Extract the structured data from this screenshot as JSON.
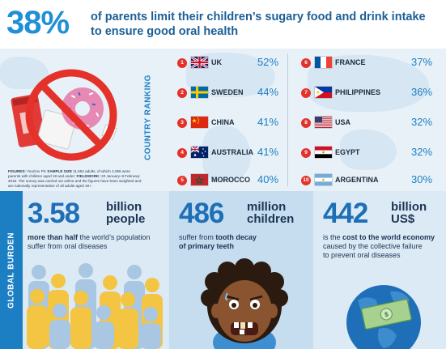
{
  "header": {
    "big_percent": "38%",
    "headline_line1": "of parents limit their children’s sugary food and drink intake",
    "headline_line2": "to ensure good oral health"
  },
  "ranking": {
    "label": "COUNTRY RANKING",
    "figures_note": {
      "label1": "FIGURES:",
      "text1": " YouGov Plc ",
      "label2": "SAMPLE SIZE",
      "text2": " 11,552 adults, of which 4,056 were parents with children aged 18 and under; ",
      "label3": "FIELDWORK:",
      "text3": " 20 January–8 February 2016. The survey was carried out online and the figures have been weighted and are nationally representative of all adults aged 18+."
    },
    "items": [
      {
        "rank": "1",
        "country": "UK",
        "percent": "52%",
        "flag": "uk-flag"
      },
      {
        "rank": "2",
        "country": "SWEDEN",
        "percent": "44%",
        "flag": "sweden-flag"
      },
      {
        "rank": "3",
        "country": "CHINA",
        "percent": "41%",
        "flag": "china-flag"
      },
      {
        "rank": "4",
        "country": "AUSTRALIA",
        "percent": "41%",
        "flag": "australia-flag"
      },
      {
        "rank": "5",
        "country": "MOROCCO",
        "percent": "40%",
        "flag": "morocco-flag"
      },
      {
        "rank": "6",
        "country": "FRANCE",
        "percent": "37%",
        "flag": "france-flag"
      },
      {
        "rank": "7",
        "country": "PHILIPPINES",
        "percent": "36%",
        "flag": "philippines-flag"
      },
      {
        "rank": "8",
        "country": "USA",
        "percent": "32%",
        "flag": "usa-flag"
      },
      {
        "rank": "9",
        "country": "EGYPT",
        "percent": "32%",
        "flag": "egypt-flag"
      },
      {
        "rank": "10",
        "country": "ARGENTINA",
        "percent": "30%",
        "flag": "argentina-flag"
      }
    ]
  },
  "burden": {
    "label": "GLOBAL BURDEN",
    "stats": [
      {
        "value": "3.58",
        "unit_line1": "billion",
        "unit_line2": "people",
        "desc_bold": "more than half",
        "desc_rest1": " the world’s population",
        "desc_line2": "suffer from oral diseases",
        "icon": "people-group-icon"
      },
      {
        "value": "486",
        "unit_line1": "million",
        "unit_line2": "children",
        "desc_line1": "suffer from ",
        "desc_bold": "tooth decay",
        "desc_line2_bold": "of primary teeth",
        "icon": "child-toothache-icon"
      },
      {
        "value": "442",
        "unit_line1": "billion",
        "unit_line2": "US$",
        "desc_line1_pre": "is the ",
        "desc_bold": "cost to the world economy",
        "desc_line2": "caused by the collective failure",
        "desc_line3": "to prevent oral diseases",
        "icon": "globe-money-icon"
      }
    ]
  },
  "colors": {
    "accent_blue": "#1c7fc4",
    "rank_red": "#e4322b",
    "dark_navy": "#1c3554"
  }
}
